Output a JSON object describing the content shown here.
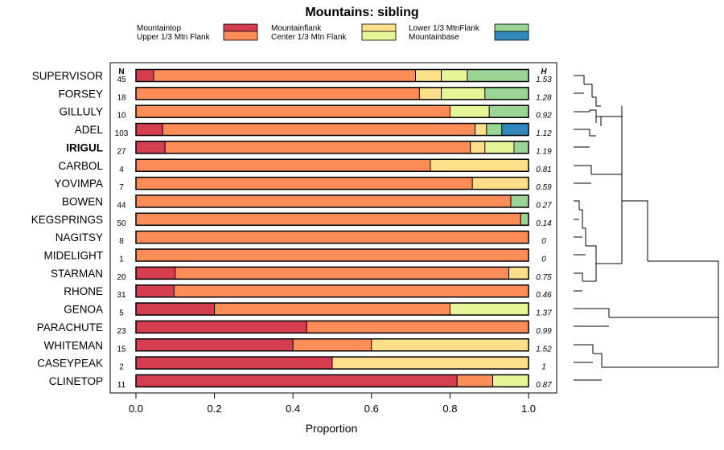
{
  "chart_data": {
    "type": "bar",
    "orientation": "horizontal",
    "stacked": true,
    "title": "Mountains: sibling",
    "xlabel": "Proportion",
    "ylabel": "",
    "xlim": [
      0,
      1
    ],
    "xticks": [
      "0.0",
      "0.2",
      "0.4",
      "0.6",
      "0.8",
      "1.0"
    ],
    "n_header": "N",
    "h_header": "H",
    "legend_position": "top",
    "series": [
      {
        "name": "Mountaintop",
        "color": "#d53e4f"
      },
      {
        "name": "Upper 1/3 Mtn Flank",
        "color": "#fc8d59"
      },
      {
        "name": "Mountainflank",
        "color": "#fee08b"
      },
      {
        "name": "Center 1/3 Mtn Flank",
        "color": "#e6f598"
      },
      {
        "name": "Lower 1/3 MtnFlank",
        "color": "#99d594"
      },
      {
        "name": "Mountainbase",
        "color": "#3288bd"
      }
    ],
    "categories": [
      {
        "label": "SUPERVISOR",
        "n": "45",
        "h": "1.53",
        "bold": false,
        "values": [
          0.045,
          0.667,
          0.066,
          0.066,
          0.156,
          0
        ]
      },
      {
        "label": "FORSEY",
        "n": "18",
        "h": "1.28",
        "bold": false,
        "values": [
          0,
          0.722,
          0.056,
          0.111,
          0.111,
          0
        ]
      },
      {
        "label": "GILLULY",
        "n": "10",
        "h": "0.92",
        "bold": false,
        "values": [
          0,
          0.8,
          0,
          0.1,
          0.1,
          0
        ]
      },
      {
        "label": "ADEL",
        "n": "103",
        "h": "1.12",
        "bold": false,
        "values": [
          0.068,
          0.796,
          0.029,
          0,
          0.039,
          0.068
        ]
      },
      {
        "label": "IRIGUL",
        "n": "27",
        "h": "1.19",
        "bold": true,
        "values": [
          0.074,
          0.778,
          0.037,
          0.074,
          0.037,
          0
        ]
      },
      {
        "label": "CARBOL",
        "n": "4",
        "h": "0.81",
        "bold": false,
        "values": [
          0,
          0.75,
          0.25,
          0,
          0,
          0
        ]
      },
      {
        "label": "YOVIMPA",
        "n": "7",
        "h": "0.59",
        "bold": false,
        "values": [
          0,
          0.857,
          0.143,
          0,
          0,
          0
        ]
      },
      {
        "label": "BOWEN",
        "n": "44",
        "h": "0.27",
        "bold": false,
        "values": [
          0,
          0.955,
          0,
          0,
          0.045,
          0
        ]
      },
      {
        "label": "KEGSPRINGS",
        "n": "50",
        "h": "0.14",
        "bold": false,
        "values": [
          0,
          0.98,
          0,
          0,
          0.02,
          0
        ]
      },
      {
        "label": "NAGITSY",
        "n": "8",
        "h": "0",
        "bold": false,
        "values": [
          0,
          1,
          0,
          0,
          0,
          0
        ]
      },
      {
        "label": "MIDELIGHT",
        "n": "1",
        "h": "0",
        "bold": false,
        "values": [
          0,
          1,
          0,
          0,
          0,
          0
        ]
      },
      {
        "label": "STARMAN",
        "n": "20",
        "h": "0.75",
        "bold": false,
        "values": [
          0.1,
          0.85,
          0.05,
          0,
          0,
          0
        ]
      },
      {
        "label": "RHONE",
        "n": "31",
        "h": "0.46",
        "bold": false,
        "values": [
          0.097,
          0.903,
          0,
          0,
          0,
          0
        ]
      },
      {
        "label": "GENOA",
        "n": "5",
        "h": "1.37",
        "bold": false,
        "values": [
          0.2,
          0.6,
          0,
          0.2,
          0,
          0
        ]
      },
      {
        "label": "PARACHUTE",
        "n": "23",
        "h": "0.99",
        "bold": false,
        "values": [
          0.435,
          0.565,
          0,
          0,
          0,
          0
        ]
      },
      {
        "label": "WHITEMAN",
        "n": "15",
        "h": "1.52",
        "bold": false,
        "values": [
          0.4,
          0.2,
          0.4,
          0,
          0,
          0
        ]
      },
      {
        "label": "CASEYPEAK",
        "n": "2",
        "h": "1",
        "bold": false,
        "values": [
          0.5,
          0,
          0.5,
          0,
          0,
          0
        ]
      },
      {
        "label": "CLINETOP",
        "n": "11",
        "h": "0.87",
        "bold": false,
        "values": [
          0.818,
          0.091,
          0,
          0.091,
          0,
          0
        ]
      }
    ]
  }
}
